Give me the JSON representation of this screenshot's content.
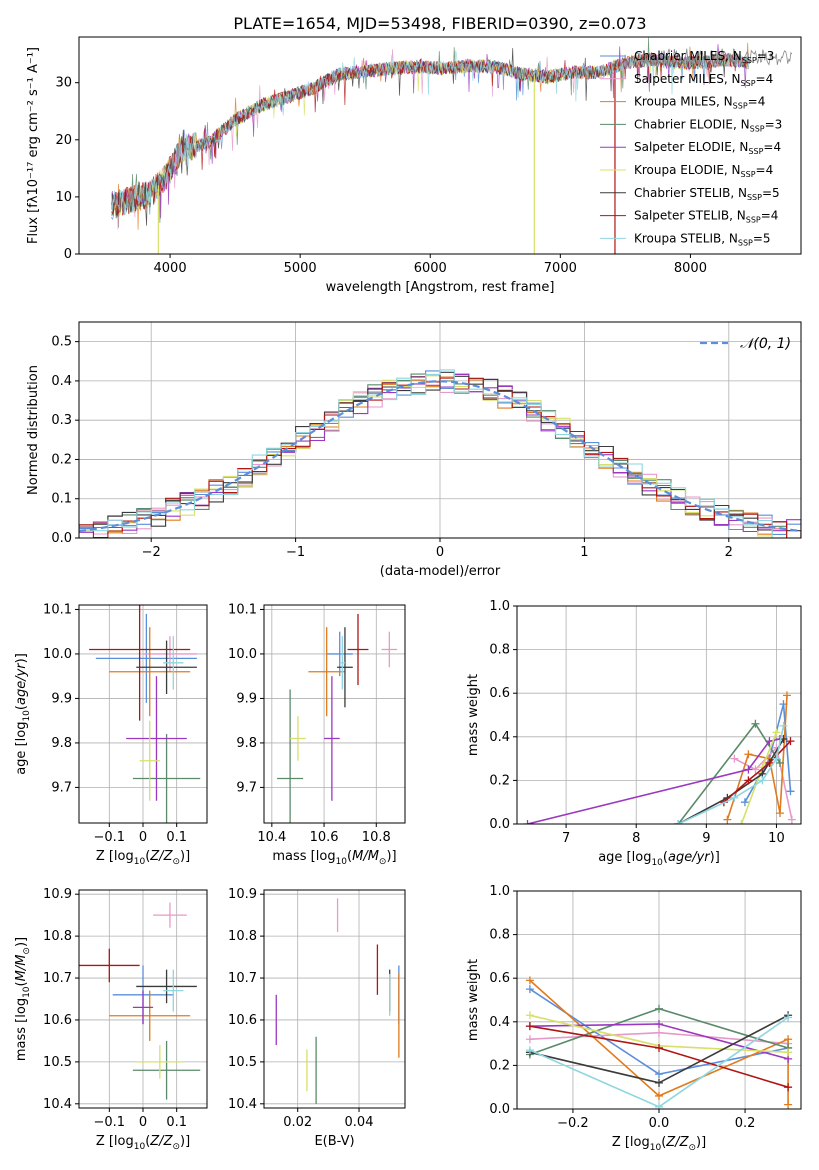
{
  "figure_title": "PLATE=1654, MJD=53498, FIBERID=0390, z=0.073",
  "legend": [
    {
      "label": "Chabrier MILES, N",
      "sub": "SSP",
      "suffix": "=3",
      "color": "#5b8fd9"
    },
    {
      "label": "Salpeter MILES, N",
      "sub": "SSP",
      "suffix": "=4",
      "color": "#e79ac9"
    },
    {
      "label": "Kroupa MILES, N",
      "sub": "SSP",
      "suffix": "=4",
      "color": "#e07b1e"
    },
    {
      "label": "Chabrier ELODIE, N",
      "sub": "SSP",
      "suffix": "=3",
      "color": "#5a8a6a"
    },
    {
      "label": "Salpeter ELODIE, N",
      "sub": "SSP",
      "suffix": "=4",
      "color": "#9b38c1"
    },
    {
      "label": "Kroupa ELODIE, N",
      "sub": "SSP",
      "suffix": "=4",
      "color": "#d7e06a"
    },
    {
      "label": "Chabrier STELIB, N",
      "sub": "SSP",
      "suffix": "=5",
      "color": "#3b3b3b"
    },
    {
      "label": "Salpeter STELIB, N",
      "sub": "SSP",
      "suffix": "=4",
      "color": "#b01515"
    },
    {
      "label": "Kroupa STELIB, N",
      "sub": "SSP",
      "suffix": "=5",
      "color": "#8ed6e0"
    }
  ],
  "chart_data": [
    {
      "id": "spectrum",
      "type": "line",
      "xlabel": "wavelength [Angstrom, rest frame]",
      "ylabel": "Flux [fλ10⁻¹⁷ erg cm⁻² s⁻¹ A⁻¹]",
      "xlim": [
        3300,
        8850
      ],
      "ylim": [
        0,
        38
      ],
      "xticks": [
        4000,
        5000,
        6000,
        7000,
        8000
      ],
      "yticks": [
        0,
        10,
        20,
        30
      ],
      "grid": false,
      "legend_position": "upper-right",
      "continuum_x": [
        3550,
        3700,
        3850,
        3950,
        4100,
        4300,
        4500,
        4700,
        4900,
        5100,
        5300,
        5500,
        5700,
        5900,
        6100,
        6300,
        6500,
        6700,
        6900,
        7100,
        7300,
        7500,
        7700,
        7900,
        8100,
        8300,
        8450
      ],
      "continuum_y": [
        8.5,
        9.5,
        10.5,
        13.0,
        18.5,
        19.5,
        23.5,
        26.0,
        27.5,
        29.0,
        31.5,
        32.0,
        32.5,
        32.8,
        32.5,
        33.0,
        32.8,
        31.5,
        31.0,
        31.8,
        31.8,
        33.5,
        34.0,
        33.5,
        33.5,
        34.0,
        33.5
      ],
      "drops": [
        {
          "x": 3910,
          "series": "Kroupa ELODIE"
        },
        {
          "x": 6800,
          "series": "Kroupa ELODIE"
        },
        {
          "x": 7420,
          "series": "Salpeter STELIB"
        }
      ],
      "mask_edges": {
        "left": 7580,
        "right": 8780,
        "low": 34.5
      }
    },
    {
      "id": "residual_hist",
      "type": "histogram",
      "xlabel": "(data-model)/error",
      "ylabel": "Normed distribution",
      "xlim": [
        -2.5,
        2.5
      ],
      "ylim": [
        0,
        0.55
      ],
      "xticks": [
        -2,
        -1,
        0,
        1,
        2
      ],
      "yticks": [
        0.0,
        0.1,
        0.2,
        0.3,
        0.4,
        0.5
      ],
      "grid": true,
      "bin_width": 0.1,
      "legend": "𝒩(0, 1)",
      "legend_position": "upper-right",
      "reference_curve": "gaussian mean 0 sigma 1"
    },
    {
      "id": "age_vs_Z",
      "type": "scatter",
      "xlabel": "Z [log10(Z/Z⊙)]",
      "ylabel": "age [log10(age/yr)]",
      "xlim": [
        -0.19,
        0.19
      ],
      "ylim": [
        9.62,
        10.11
      ],
      "xticks": [
        -0.1,
        0.0,
        0.1
      ],
      "yticks": [
        9.7,
        9.8,
        9.9,
        10.0,
        10.1
      ],
      "grid": true,
      "points": [
        {
          "series": "Chabrier MILES",
          "x": 0.01,
          "y": 9.99,
          "xerr": 0.15,
          "yerr": 0.1
        },
        {
          "series": "Salpeter MILES",
          "x": 0.08,
          "y": 10.0,
          "xerr": 0.08,
          "yerr": 0.04
        },
        {
          "series": "Kroupa MILES",
          "x": 0.02,
          "y": 9.96,
          "xerr": 0.12,
          "yerr": 0.1
        },
        {
          "series": "Chabrier ELODIE",
          "x": 0.07,
          "y": 9.72,
          "xerr": 0.1,
          "yerr": 0.1
        },
        {
          "series": "Salpeter ELODIE",
          "x": 0.04,
          "y": 9.81,
          "xerr": 0.09,
          "yerr": 0.14
        },
        {
          "series": "Kroupa ELODIE",
          "x": 0.02,
          "y": 9.76,
          "xerr": 0.03,
          "yerr": 0.09
        },
        {
          "series": "Chabrier STELIB",
          "x": 0.07,
          "y": 9.97,
          "xerr": 0.09,
          "yerr": 0.06
        },
        {
          "series": "Salpeter STELIB",
          "x": -0.01,
          "y": 10.01,
          "xerr": 0.15,
          "yerr": 0.16
        },
        {
          "series": "Kroupa STELIB",
          "x": 0.09,
          "y": 9.98,
          "xerr": 0.03,
          "yerr": 0.06
        }
      ]
    },
    {
      "id": "age_vs_mass",
      "type": "scatter",
      "xlabel": "mass [log10(M/M⊙)]",
      "ylabel": "",
      "xlim": [
        10.37,
        10.91
      ],
      "ylim": [
        9.62,
        10.11
      ],
      "xticks": [
        10.4,
        10.6,
        10.8
      ],
      "yticks": [
        9.7,
        9.8,
        9.9,
        10.0,
        10.1
      ],
      "grid": true,
      "points": [
        {
          "series": "Chabrier MILES",
          "x": 10.66,
          "y": 10.0,
          "xerr": 0.05,
          "yerr": 0.05
        },
        {
          "series": "Salpeter MILES",
          "x": 10.85,
          "y": 10.01,
          "xerr": 0.03,
          "yerr": 0.04
        },
        {
          "series": "Kroupa MILES",
          "x": 10.61,
          "y": 9.96,
          "xerr": 0.07,
          "yerr": 0.1
        },
        {
          "series": "Chabrier ELODIE",
          "x": 10.47,
          "y": 9.72,
          "xerr": 0.05,
          "yerr": 0.2
        },
        {
          "series": "Salpeter ELODIE",
          "x": 10.63,
          "y": 9.81,
          "xerr": 0.03,
          "yerr": 0.14
        },
        {
          "series": "Kroupa ELODIE",
          "x": 10.5,
          "y": 9.81,
          "xerr": 0.03,
          "yerr": 0.05
        },
        {
          "series": "Chabrier STELIB",
          "x": 10.68,
          "y": 9.97,
          "xerr": 0.03,
          "yerr": 0.09
        },
        {
          "series": "Salpeter STELIB",
          "x": 10.73,
          "y": 10.01,
          "xerr": 0.04,
          "yerr": 0.08
        },
        {
          "series": "Kroupa STELIB",
          "x": 10.67,
          "y": 9.98,
          "xerr": 0.01,
          "yerr": 0.06
        }
      ]
    },
    {
      "id": "weight_vs_age",
      "type": "line",
      "xlabel": "age [log10(age/yr)]",
      "ylabel": "mass weight",
      "xlim": [
        6.3,
        10.35
      ],
      "ylim": [
        0.0,
        1.0
      ],
      "xticks": [
        7,
        8,
        9,
        10
      ],
      "yticks": [
        0.0,
        0.2,
        0.4,
        0.6,
        0.8,
        1.0
      ],
      "grid": true,
      "series": [
        {
          "name": "Chabrier MILES",
          "x": [
            9.55,
            9.9,
            10.1,
            10.2
          ],
          "y": [
            0.1,
            0.3,
            0.55,
            0.15
          ]
        },
        {
          "name": "Salpeter MILES",
          "x": [
            9.4,
            9.7,
            10.0,
            10.22
          ],
          "y": [
            0.3,
            0.25,
            0.35,
            0.02
          ]
        },
        {
          "name": "Kroupa MILES",
          "x": [
            9.3,
            9.6,
            9.9,
            10.05,
            10.15
          ],
          "y": [
            0.02,
            0.32,
            0.3,
            0.05,
            0.59
          ]
        },
        {
          "name": "Chabrier ELODIE",
          "x": [
            8.6,
            9.7,
            10.05
          ],
          "y": [
            0.0,
            0.46,
            0.28
          ]
        },
        {
          "name": "Salpeter ELODIE",
          "x": [
            6.45,
            9.6,
            9.9,
            10.05
          ],
          "y": [
            0.0,
            0.25,
            0.38,
            0.39
          ]
        },
        {
          "name": "Kroupa ELODIE",
          "x": [
            9.5,
            9.8,
            10.0
          ],
          "y": [
            0.0,
            0.26,
            0.42
          ]
        },
        {
          "name": "Chabrier STELIB",
          "x": [
            8.6,
            9.3,
            9.8,
            10.1
          ],
          "y": [
            0.0,
            0.12,
            0.23,
            0.39
          ]
        },
        {
          "name": "Salpeter STELIB",
          "x": [
            9.25,
            9.6,
            9.9,
            10.2
          ],
          "y": [
            0.1,
            0.2,
            0.28,
            0.38
          ]
        },
        {
          "name": "Kroupa STELIB",
          "x": [
            8.6,
            9.4,
            9.8,
            10.0,
            10.1
          ],
          "y": [
            0.0,
            0.12,
            0.2,
            0.3,
            0.45
          ]
        }
      ]
    },
    {
      "id": "mass_vs_Z",
      "type": "scatter",
      "xlabel": "Z [log10(Z/Z⊙)]",
      "ylabel": "mass [log10(M/M⊙)]",
      "xlim": [
        -0.19,
        0.19
      ],
      "ylim": [
        10.39,
        10.91
      ],
      "xticks": [
        -0.1,
        0.0,
        0.1
      ],
      "yticks": [
        10.4,
        10.5,
        10.6,
        10.7,
        10.8,
        10.9
      ],
      "grid": true,
      "points": [
        {
          "series": "Chabrier MILES",
          "x": 0.0,
          "y": 10.66,
          "xerr": 0.09,
          "yerr": 0.07
        },
        {
          "series": "Salpeter MILES",
          "x": 0.08,
          "y": 10.85,
          "xerr": 0.05,
          "yerr": 0.03
        },
        {
          "series": "Kroupa MILES",
          "x": 0.02,
          "y": 10.61,
          "xerr": 0.12,
          "yerr": 0.06
        },
        {
          "series": "Chabrier ELODIE",
          "x": 0.07,
          "y": 10.48,
          "xerr": 0.1,
          "yerr": 0.07
        },
        {
          "series": "Salpeter ELODIE",
          "x": 0.0,
          "y": 10.63,
          "xerr": 0.03,
          "yerr": 0.04
        },
        {
          "series": "Kroupa ELODIE",
          "x": 0.05,
          "y": 10.5,
          "xerr": 0.07,
          "yerr": 0.04
        },
        {
          "series": "Chabrier STELIB",
          "x": 0.07,
          "y": 10.68,
          "xerr": 0.09,
          "yerr": 0.04
        },
        {
          "series": "Salpeter STELIB",
          "x": -0.1,
          "y": 10.73,
          "xerr": 0.09,
          "yerr": 0.04
        },
        {
          "series": "Kroupa STELIB",
          "x": 0.09,
          "y": 10.67,
          "xerr": 0.03,
          "yerr": 0.05
        }
      ]
    },
    {
      "id": "mass_vs_EBV",
      "type": "scatter",
      "xlabel": "E(B-V)",
      "ylabel": "",
      "xlim": [
        0.009,
        0.055
      ],
      "ylim": [
        10.39,
        10.91
      ],
      "xticks": [
        0.02,
        0.04
      ],
      "yticks": [
        10.4,
        10.5,
        10.6,
        10.7,
        10.8,
        10.9
      ],
      "grid": true,
      "points": [
        {
          "series": "Chabrier MILES",
          "x": 0.053,
          "y": 10.66,
          "xerr": 0,
          "yerr": 0.07
        },
        {
          "series": "Salpeter MILES",
          "x": 0.033,
          "y": 10.85,
          "xerr": 0,
          "yerr": 0.04
        },
        {
          "series": "Kroupa MILES",
          "x": 0.053,
          "y": 10.61,
          "xerr": 0,
          "yerr": 0.1
        },
        {
          "series": "Chabrier ELODIE",
          "x": 0.026,
          "y": 10.48,
          "xerr": 0,
          "yerr": 0.08
        },
        {
          "series": "Salpeter ELODIE",
          "x": 0.013,
          "y": 10.6,
          "xerr": 0,
          "yerr": 0.06
        },
        {
          "series": "Kroupa ELODIE",
          "x": 0.023,
          "y": 10.48,
          "xerr": 0,
          "yerr": 0.05
        },
        {
          "series": "Chabrier STELIB",
          "x": 0.05,
          "y": 10.67,
          "xerr": 0,
          "yerr": 0.05
        },
        {
          "series": "Salpeter STELIB",
          "x": 0.046,
          "y": 10.72,
          "xerr": 0,
          "yerr": 0.06
        },
        {
          "series": "Kroupa STELIB",
          "x": 0.05,
          "y": 10.66,
          "xerr": 0,
          "yerr": 0.05
        }
      ]
    },
    {
      "id": "weight_vs_Z",
      "type": "line",
      "xlabel": "Z [log10(Z/Z⊙)]",
      "ylabel": "mass weight",
      "xlim": [
        -0.33,
        0.33
      ],
      "ylim": [
        0.0,
        1.0
      ],
      "xticks": [
        -0.2,
        0.0,
        0.2
      ],
      "yticks": [
        0.0,
        0.2,
        0.4,
        0.6,
        0.8,
        1.0
      ],
      "grid": true,
      "series": [
        {
          "name": "Chabrier MILES",
          "x": [
            -0.3,
            0.0,
            0.3
          ],
          "y": [
            0.55,
            0.16,
            0.28
          ]
        },
        {
          "name": "Salpeter MILES",
          "x": [
            -0.3,
            0.0,
            0.3
          ],
          "y": [
            0.32,
            0.35,
            0.3
          ]
        },
        {
          "name": "Kroupa MILES",
          "x": [
            -0.3,
            0.0,
            0.3,
            0.3
          ],
          "y": [
            0.59,
            0.06,
            0.32,
            0.02
          ]
        },
        {
          "name": "Chabrier ELODIE",
          "x": [
            -0.3,
            0.0,
            0.3
          ],
          "y": [
            0.25,
            0.46,
            0.28
          ]
        },
        {
          "name": "Salpeter ELODIE",
          "x": [
            -0.3,
            0.0,
            0.3
          ],
          "y": [
            0.38,
            0.39,
            0.23
          ]
        },
        {
          "name": "Kroupa ELODIE",
          "x": [
            -0.3,
            0.0,
            0.3
          ],
          "y": [
            0.43,
            0.29,
            0.26
          ]
        },
        {
          "name": "Chabrier STELIB",
          "x": [
            -0.3,
            0.0,
            0.3
          ],
          "y": [
            0.26,
            0.12,
            0.43
          ]
        },
        {
          "name": "Salpeter STELIB",
          "x": [
            -0.3,
            0.0,
            0.3
          ],
          "y": [
            0.38,
            0.28,
            0.1
          ]
        },
        {
          "name": "Kroupa STELIB",
          "x": [
            -0.3,
            0.0,
            0.3
          ],
          "y": [
            0.27,
            0.01,
            0.42
          ]
        }
      ]
    }
  ]
}
